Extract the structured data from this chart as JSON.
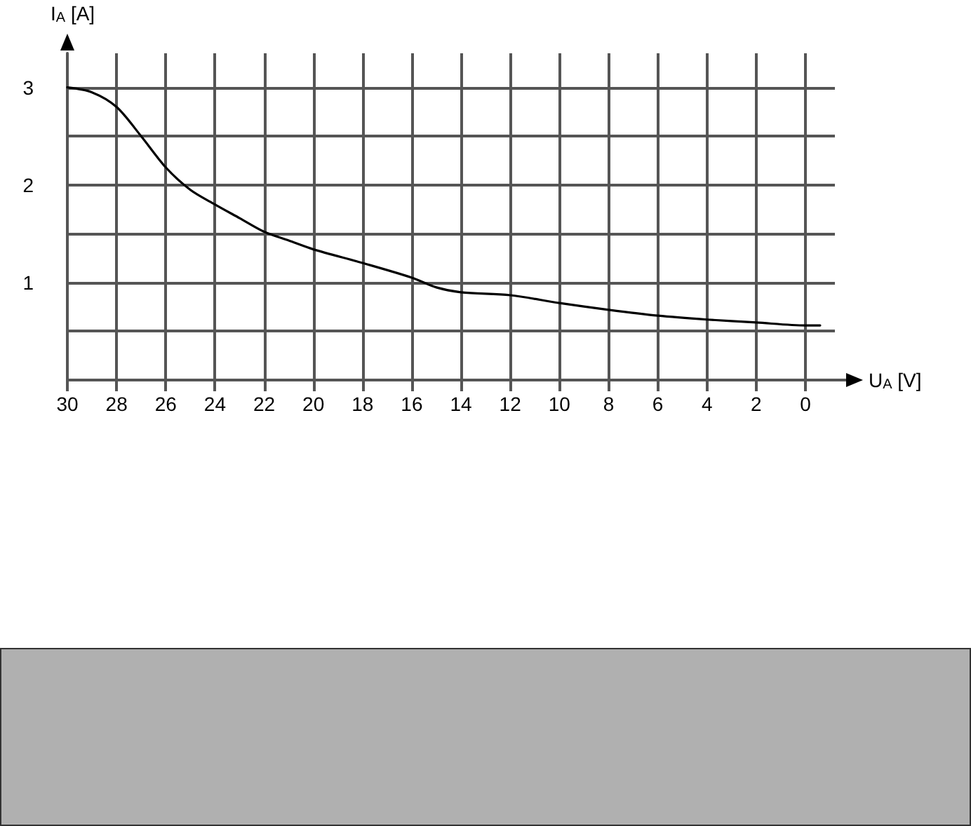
{
  "chart_data": {
    "type": "line",
    "xlabel": "U$_{A}$ [V]",
    "ylabel": "I$_{A}$ [A]",
    "x": [
      30,
      29,
      28,
      27,
      26,
      25,
      24,
      23,
      22,
      21,
      20,
      18,
      16,
      15,
      14,
      12,
      10,
      8,
      6,
      4,
      2,
      0,
      -0.6
    ],
    "series": [
      {
        "color": "#000000",
        "values": [
          3.0,
          2.95,
          2.8,
          2.5,
          2.18,
          1.95,
          1.8,
          1.66,
          1.52,
          1.43,
          1.34,
          1.2,
          1.05,
          0.95,
          0.9,
          0.87,
          0.79,
          0.72,
          0.66,
          0.62,
          0.59,
          0.56,
          0.56
        ]
      }
    ],
    "xlim": [
      30,
      -1.2
    ],
    "ylim": [
      0,
      3.35
    ],
    "xticks": [
      30,
      28,
      26,
      24,
      22,
      20,
      18,
      16,
      14,
      12,
      10,
      8,
      6,
      4,
      2,
      0
    ],
    "yticks": [
      {
        "value": 0.5,
        "label": null
      },
      1,
      {
        "value": 1.5,
        "label": null
      },
      2,
      {
        "value": 2.5,
        "label": null
      },
      3
    ],
    "grid": true,
    "marker": "none",
    "line_style": "solid"
  }
}
